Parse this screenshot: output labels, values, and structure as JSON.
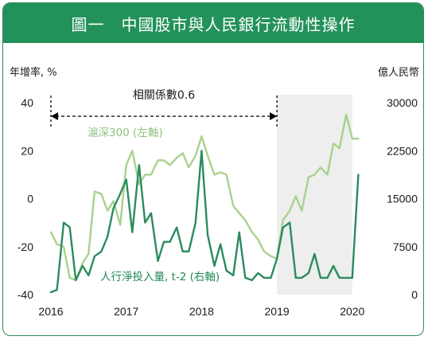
{
  "title": "圖一　中國股市與人民銀行流動性操作",
  "chart_data": {
    "type": "line",
    "left_axis_label": "年增率, %",
    "right_axis_label": "億人民幣",
    "left_ylim": [
      -40,
      40
    ],
    "left_ticks": [
      "40",
      "20",
      "0",
      "-20",
      "-40"
    ],
    "right_ylim": [
      0,
      30000
    ],
    "right_ticks": [
      "30000",
      "22500",
      "15000",
      "7500",
      "0"
    ],
    "x_ticks": [
      "2016",
      "2017",
      "2018",
      "2019",
      "2020"
    ],
    "xlim": [
      2016,
      2020.15
    ],
    "shaded_region": [
      2019,
      2020
    ],
    "correlation_label": "相關係數0.6",
    "correlation_span": [
      2016,
      2019
    ],
    "series": [
      {
        "name": "滬深300 (左軸)",
        "axis": "left",
        "color": "#a9d18e",
        "x": [
          2016.0,
          2016.08,
          2016.17,
          2016.25,
          2016.33,
          2016.42,
          2016.5,
          2016.58,
          2016.67,
          2016.75,
          2016.83,
          2016.92,
          2017.0,
          2017.08,
          2017.17,
          2017.25,
          2017.33,
          2017.42,
          2017.5,
          2017.58,
          2017.67,
          2017.75,
          2017.83,
          2017.92,
          2018.0,
          2018.08,
          2018.17,
          2018.25,
          2018.33,
          2018.42,
          2018.5,
          2018.58,
          2018.67,
          2018.75,
          2018.83,
          2018.92,
          2019.0,
          2019.08,
          2019.17,
          2019.25,
          2019.33,
          2019.42,
          2019.5,
          2019.58,
          2019.67,
          2019.75,
          2019.83,
          2019.92,
          2020.0,
          2020.08
        ],
        "values": [
          -14,
          -19,
          -20,
          -33,
          -34,
          -27,
          -23,
          3,
          2,
          -5,
          -1,
          -11,
          14,
          20,
          6,
          10,
          10,
          16,
          16,
          14,
          17,
          19,
          13,
          18,
          26,
          18,
          10,
          11,
          10,
          -3,
          -6,
          -9,
          -14,
          -17,
          -22,
          -24,
          -25,
          -9,
          -5,
          1,
          -5,
          9,
          10,
          13,
          10,
          23,
          21,
          35,
          25,
          25
        ]
      },
      {
        "name": "人行淨投入量, t-2 (右軸)",
        "axis": "right",
        "color": "#2a8c5c",
        "x": [
          2016.0,
          2016.08,
          2016.17,
          2016.25,
          2016.33,
          2016.42,
          2016.5,
          2016.58,
          2016.67,
          2016.75,
          2016.83,
          2016.92,
          2017.0,
          2017.08,
          2017.17,
          2017.25,
          2017.33,
          2017.42,
          2017.5,
          2017.58,
          2017.67,
          2017.75,
          2017.83,
          2017.92,
          2018.0,
          2018.08,
          2018.17,
          2018.25,
          2018.33,
          2018.42,
          2018.5,
          2018.58,
          2018.67,
          2018.75,
          2018.83,
          2018.92,
          2019.0,
          2019.08,
          2019.17,
          2019.25,
          2019.33,
          2019.42,
          2019.5,
          2019.58,
          2019.67,
          2019.75,
          2019.83,
          2019.92,
          2020.0,
          2020.08
        ],
        "values": [
          375,
          750,
          11250,
          10500,
          2250,
          4500,
          3000,
          6000,
          6750,
          9000,
          13500,
          15750,
          18000,
          9750,
          20250,
          11250,
          12750,
          5250,
          8250,
          8250,
          10500,
          6750,
          6750,
          11250,
          22500,
          9375,
          4500,
          7875,
          3750,
          3000,
          9750,
          2625,
          2250,
          3375,
          2625,
          2625,
          5625,
          10500,
          11250,
          2625,
          2625,
          3375,
          6375,
          2625,
          2625,
          4500,
          2625,
          2625,
          2625,
          18750
        ]
      }
    ],
    "labels": {
      "light_series": "滬深300 (左軸)",
      "dark_series": "人行淨投入量, t-2 (右軸)"
    }
  }
}
